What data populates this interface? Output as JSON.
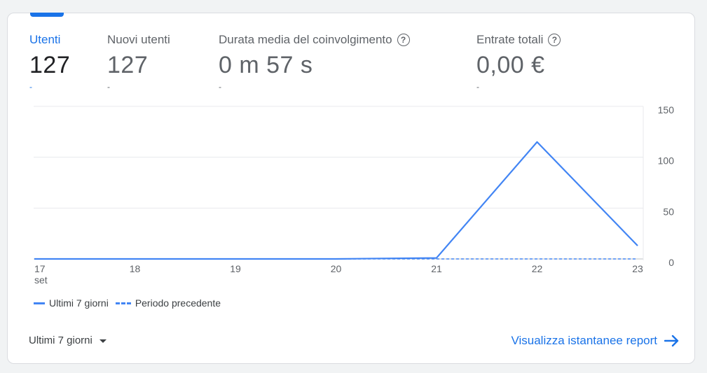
{
  "metrics": [
    {
      "label": "Utenti",
      "value": "127",
      "delta": "-",
      "help": false,
      "active": true
    },
    {
      "label": "Nuovi utenti",
      "value": "127",
      "delta": "-",
      "help": false,
      "active": false
    },
    {
      "label": "Durata media del coinvolgimento",
      "value": "0 m 57 s",
      "delta": "-",
      "help": true,
      "active": false
    },
    {
      "label": "Entrate totali",
      "value": "0,00 €",
      "delta": "-",
      "help": true,
      "active": false
    }
  ],
  "chart_data": {
    "type": "line",
    "x": [
      "17",
      "18",
      "19",
      "20",
      "21",
      "22",
      "23"
    ],
    "x_sublabel_first": "set",
    "ylim": [
      0,
      150
    ],
    "yticks": [
      "150",
      "100",
      "50",
      "0"
    ],
    "series": [
      {
        "name": "Ultimi 7 giorni",
        "values": [
          0,
          0,
          0,
          0,
          1,
          115,
          13
        ],
        "style": "solid",
        "color": "#4285f4"
      },
      {
        "name": "Periodo precedente",
        "values": [
          0,
          0,
          0,
          0,
          0,
          0,
          0
        ],
        "style": "dashed",
        "color": "#4285f4"
      }
    ],
    "legend_position": "bottom-left",
    "grid": true
  },
  "footer": {
    "range_label": "Ultimi 7 giorni",
    "report_link": "Visualizza istantanee report"
  },
  "colors": {
    "accent": "#1a73e8",
    "series": "#4285f4"
  }
}
